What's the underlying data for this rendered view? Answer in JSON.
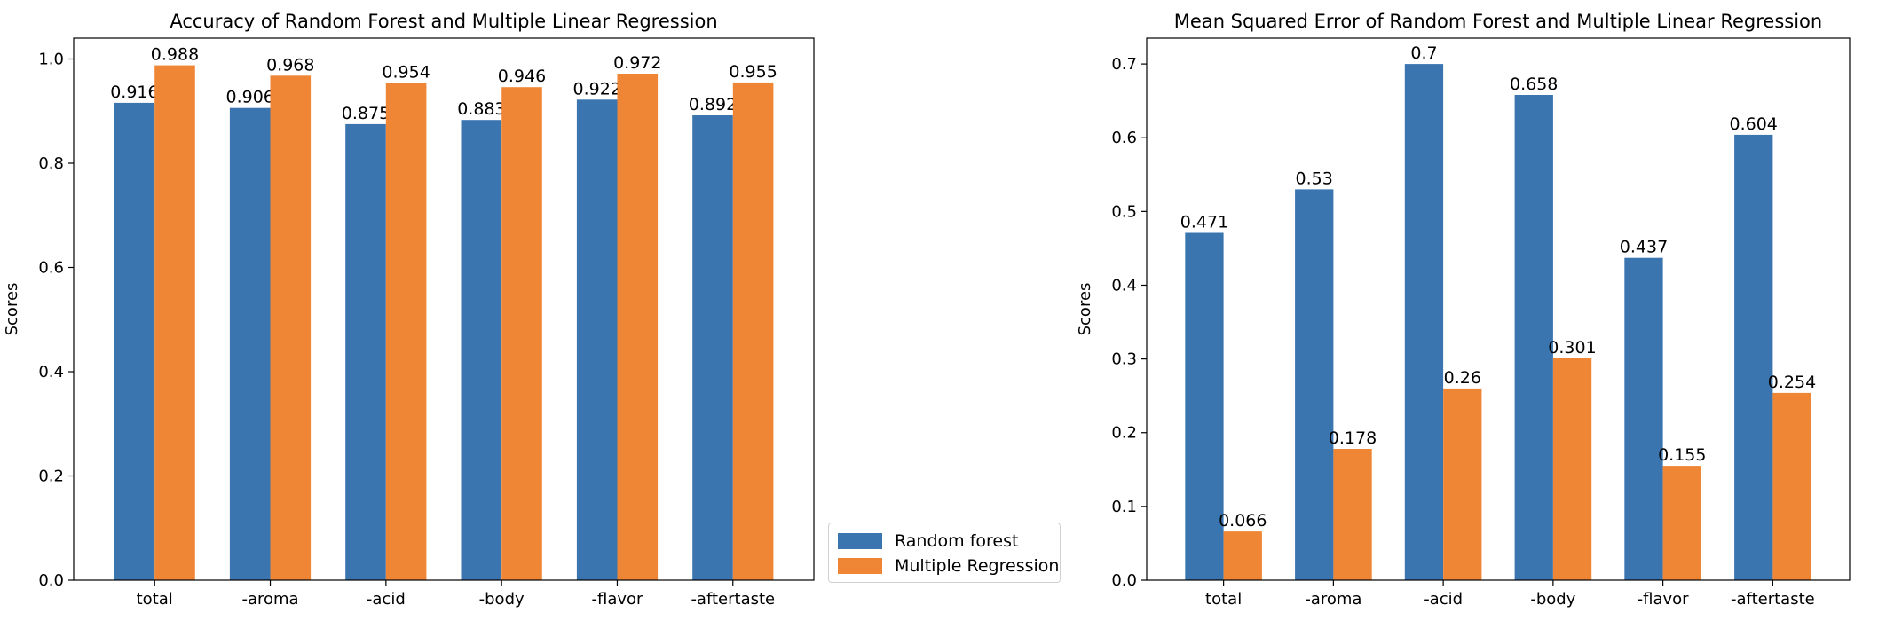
{
  "colors": {
    "rf": "#3a75b0",
    "mr": "#ef8636"
  },
  "legend": [
    {
      "label": "Random forest",
      "color": "#3a75b0"
    },
    {
      "label": "Multiple Regression",
      "color": "#ef8636"
    }
  ],
  "chart_data": [
    {
      "type": "bar",
      "title": "Accuracy of Random Forest and Multiple Linear Regression",
      "xlabel": "",
      "ylabel": "Scores",
      "categories": [
        "total",
        "-aroma",
        "-acid",
        "-body",
        "-flavor",
        "-aftertaste"
      ],
      "series": [
        {
          "name": "Random forest",
          "values": [
            0.916,
            0.906,
            0.875,
            0.883,
            0.922,
            0.892
          ]
        },
        {
          "name": "Multiple Regression",
          "values": [
            0.988,
            0.968,
            0.954,
            0.946,
            0.972,
            0.955
          ]
        }
      ],
      "ylim": [
        0,
        1.04
      ],
      "yticks": [
        "0.0",
        "0.2",
        "0.4",
        "0.6",
        "0.8",
        "1.0"
      ],
      "bar_labels": [
        [
          "0.916",
          "0.906",
          "0.875",
          "0.883",
          "0.922",
          "0.892"
        ],
        [
          "0.988",
          "0.968",
          "0.954",
          "0.946",
          "0.972",
          "0.955"
        ]
      ],
      "grid": false,
      "legend_placement": "outside-bottom-right"
    },
    {
      "type": "bar",
      "title": "Mean Squared Error of Random Forest and Multiple Linear Regression",
      "xlabel": "",
      "ylabel": "Scores",
      "categories": [
        "total",
        "-aroma",
        "-acid",
        "-body",
        "-flavor",
        "-aftertaste"
      ],
      "series": [
        {
          "name": "Random forest",
          "values": [
            0.471,
            0.53,
            0.7,
            0.658,
            0.437,
            0.604
          ]
        },
        {
          "name": "Multiple Regression",
          "values": [
            0.066,
            0.178,
            0.26,
            0.301,
            0.155,
            0.254
          ]
        }
      ],
      "ylim": [
        0,
        0.735
      ],
      "yticks": [
        "0.0",
        "0.1",
        "0.2",
        "0.3",
        "0.4",
        "0.5",
        "0.6",
        "0.7"
      ],
      "bar_labels": [
        [
          "0.471",
          "0.53",
          "0.7",
          "0.658",
          "0.437",
          "0.604"
        ],
        [
          "0.066",
          "0.178",
          "0.26",
          "0.301",
          "0.155",
          "0.254"
        ]
      ],
      "grid": false
    }
  ]
}
